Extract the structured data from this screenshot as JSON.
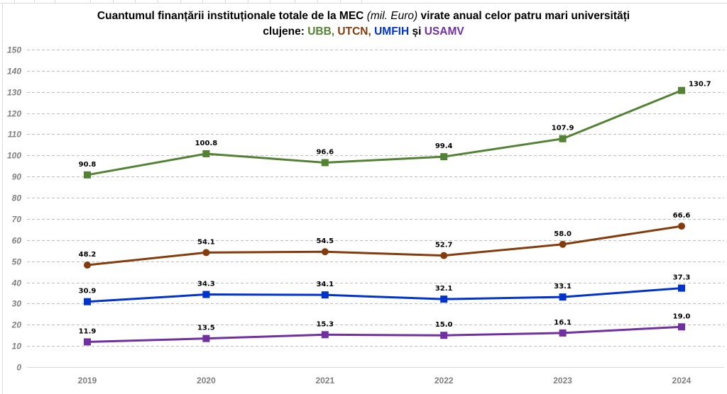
{
  "chart_data": {
    "type": "line",
    "title": {
      "line1_part1": "Cuantumul finanțării instituționale totale de la MEC ",
      "line1_italic": "(mil. Euro)",
      "line1_part2": " virate anual celor patru mari universități",
      "line2_prefix": "clujene: ",
      "line2_sep1": ", ",
      "line2_sep2": ", ",
      "line2_conj": " și "
    },
    "xlabel": "",
    "ylabel": "",
    "categories": [
      "2019",
      "2020",
      "2021",
      "2022",
      "2023",
      "2024"
    ],
    "ylim": [
      0,
      150
    ],
    "yticks": [
      0,
      10,
      20,
      30,
      40,
      50,
      60,
      70,
      80,
      90,
      100,
      110,
      120,
      130,
      140,
      150
    ],
    "grid": true,
    "legend": "none (series named in title)",
    "series": [
      {
        "name": "UBB",
        "color": "#548235",
        "marker": "square",
        "values": [
          90.8,
          100.8,
          96.6,
          99.4,
          107.9,
          130.7
        ],
        "labels": [
          "90.8",
          "100.8",
          "96.6",
          "99.4",
          "107.9",
          "130.7"
        ]
      },
      {
        "name": "UTCN",
        "color": "#843c0c",
        "marker": "circle",
        "values": [
          48.2,
          54.1,
          54.5,
          52.7,
          58.0,
          66.6
        ],
        "labels": [
          "48.2",
          "54.1",
          "54.5",
          "52.7",
          "58.0",
          "66.6"
        ]
      },
      {
        "name": "UMFIH",
        "color": "#0033cc",
        "marker": "square",
        "values": [
          30.9,
          34.3,
          34.1,
          32.1,
          33.1,
          37.3
        ],
        "labels": [
          "30.9",
          "34.3",
          "34.1",
          "32.1",
          "33.1",
          "37.3"
        ]
      },
      {
        "name": "USAMV",
        "color": "#7030a0",
        "marker": "square",
        "values": [
          11.9,
          13.5,
          15.3,
          15.0,
          16.1,
          19.0
        ],
        "labels": [
          "11.9",
          "13.5",
          "15.3",
          "15.0",
          "16.1",
          "19.0"
        ]
      }
    ]
  }
}
